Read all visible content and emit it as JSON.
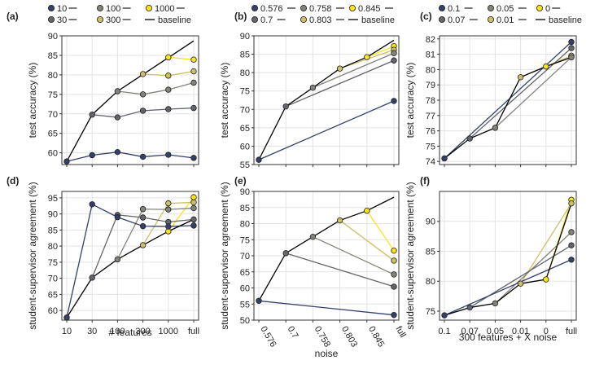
{
  "palette": {
    "navy": "#34406a",
    "gray1": "#63656c",
    "gray2": "#84827a",
    "olive": "#a7a07a",
    "khaki": "#cdbf66",
    "yellow": "#fbe318",
    "baseline": "#000000",
    "grid": "#e3e3e3"
  },
  "chart_data": [
    {
      "panel": "(a)",
      "type": "line",
      "x": [
        "10",
        "30",
        "100",
        "300",
        "1000",
        "full"
      ],
      "xlabel": "",
      "ylabel": "test accuracy (%)",
      "ylim": [
        57,
        90
      ],
      "yticks": [
        60,
        65,
        70,
        75,
        80,
        85,
        90
      ],
      "xtick_labels": false,
      "legend": [
        {
          "label": "10",
          "color": "navy",
          "type": "dot"
        },
        {
          "label": "100",
          "color": "gray2",
          "type": "dot"
        },
        {
          "label": "1000",
          "color": "yellow",
          "type": "dot"
        },
        {
          "label": "30",
          "color": "gray1",
          "type": "dot"
        },
        {
          "label": "300",
          "color": "khaki",
          "type": "dot"
        },
        {
          "label": "baseline",
          "color": "baseline",
          "type": "line"
        }
      ],
      "baseline": {
        "x": [
          0,
          1,
          2,
          3,
          4,
          5
        ],
        "y": [
          57.8,
          69.8,
          75.8,
          80.1,
          84.4,
          88.7
        ]
      },
      "series": [
        {
          "name": "10",
          "color": "navy",
          "x": [
            0,
            1,
            2,
            3,
            4,
            5
          ],
          "y": [
            57.8,
            59.4,
            60.2,
            59.0,
            59.5,
            58.7
          ]
        },
        {
          "name": "30",
          "color": "gray1",
          "x": [
            1,
            2,
            3,
            4,
            5
          ],
          "y": [
            69.8,
            69.1,
            70.8,
            71.2,
            71.5
          ]
        },
        {
          "name": "100",
          "color": "gray2",
          "x": [
            2,
            3,
            4,
            5
          ],
          "y": [
            75.8,
            75.0,
            76.2,
            78.0
          ]
        },
        {
          "name": "300",
          "color": "khaki",
          "x": [
            3,
            4,
            5
          ],
          "y": [
            80.2,
            79.8,
            80.9
          ]
        },
        {
          "name": "1000",
          "color": "yellow",
          "x": [
            4,
            5
          ],
          "y": [
            84.5,
            83.9
          ]
        }
      ]
    },
    {
      "panel": "(b)",
      "type": "line",
      "x": [
        "0.576",
        "0.7",
        "0.758",
        "0.803",
        "0.845",
        "full"
      ],
      "xlabel": "",
      "ylabel": "test accuracy (%)",
      "ylim": [
        55,
        90
      ],
      "yticks": [
        55,
        60,
        65,
        70,
        75,
        80,
        85,
        90
      ],
      "xtick_labels": false,
      "legend": [
        {
          "label": "0.576",
          "color": "navy",
          "type": "dot"
        },
        {
          "label": "0.758",
          "color": "gray2",
          "type": "dot"
        },
        {
          "label": "0.845",
          "color": "yellow",
          "type": "dot"
        },
        {
          "label": "0.7",
          "color": "gray1",
          "type": "dot"
        },
        {
          "label": "0.803",
          "color": "khaki",
          "type": "dot"
        },
        {
          "label": "baseline",
          "color": "baseline",
          "type": "line"
        }
      ],
      "baseline": {
        "x": [
          0,
          1,
          2,
          3,
          4,
          5
        ],
        "y": [
          56.3,
          70.8,
          75.9,
          81.1,
          84.2,
          88.8
        ]
      },
      "series": [
        {
          "name": "0.576",
          "color": "navy",
          "x": [
            0,
            5
          ],
          "y": [
            56.3,
            72.3
          ]
        },
        {
          "name": "0.7",
          "color": "gray1",
          "x": [
            1,
            5
          ],
          "y": [
            70.8,
            83.3
          ]
        },
        {
          "name": "0.758",
          "color": "gray2",
          "x": [
            2,
            5
          ],
          "y": [
            75.9,
            85.3
          ]
        },
        {
          "name": "0.803",
          "color": "khaki",
          "x": [
            3,
            5
          ],
          "y": [
            81.1,
            86.2
          ]
        },
        {
          "name": "0.845",
          "color": "yellow",
          "x": [
            4,
            5
          ],
          "y": [
            84.2,
            87.2
          ]
        }
      ]
    },
    {
      "panel": "(c)",
      "type": "line",
      "x": [
        "0.1",
        "0.07",
        "0.05",
        "0.01",
        "0",
        "full"
      ],
      "xlabel": "",
      "ylabel": "test accuracy (%)",
      "ylim": [
        73.8,
        82.2
      ],
      "yticks": [
        74,
        75,
        76,
        77,
        78,
        79,
        80,
        81,
        82
      ],
      "xtick_labels": false,
      "legend": [
        {
          "label": "0.1",
          "color": "navy",
          "type": "dot"
        },
        {
          "label": "0.05",
          "color": "gray2",
          "type": "dot"
        },
        {
          "label": "0",
          "color": "yellow",
          "type": "dot"
        },
        {
          "label": "0.07",
          "color": "gray1",
          "type": "dot"
        },
        {
          "label": "0.01",
          "color": "khaki",
          "type": "dot"
        },
        {
          "label": "baseline",
          "color": "baseline",
          "type": "line"
        }
      ],
      "baseline": {
        "x": [
          0,
          1,
          2,
          3,
          4,
          5
        ],
        "y": [
          74.2,
          75.5,
          76.2,
          79.5,
          80.2,
          80.8
        ]
      },
      "series": [
        {
          "name": "0.1",
          "color": "navy",
          "x": [
            0,
            5
          ],
          "y": [
            74.2,
            81.8
          ]
        },
        {
          "name": "0.07",
          "color": "gray1",
          "x": [
            1,
            5
          ],
          "y": [
            75.5,
            81.4
          ]
        },
        {
          "name": "0.05",
          "color": "gray2",
          "x": [
            2,
            5
          ],
          "y": [
            76.2,
            80.8
          ]
        },
        {
          "name": "0.01",
          "color": "khaki",
          "x": [
            3,
            5
          ],
          "y": [
            79.5,
            80.9
          ]
        },
        {
          "name": "0",
          "color": "yellow",
          "x": [
            4,
            5
          ],
          "y": [
            80.2,
            80.9
          ]
        }
      ]
    },
    {
      "panel": "(d)",
      "type": "line",
      "x": [
        "10",
        "30",
        "100",
        "300",
        "1000",
        "full"
      ],
      "xlabel": "# features",
      "ylabel": "student-supervisor agreement (%)",
      "ylim": [
        57,
        97
      ],
      "yticks": [
        60,
        65,
        70,
        75,
        80,
        85,
        90,
        95
      ],
      "xtick_labels": true,
      "baseline": {
        "x": [
          0,
          1,
          2,
          3,
          4,
          5
        ],
        "y": [
          57.8,
          70.2,
          75.9,
          80.3,
          84.6,
          88.3
        ]
      },
      "series": [
        {
          "name": "10",
          "color": "navy",
          "x": [
            0,
            1,
            2,
            3,
            4,
            5
          ],
          "y": [
            57.8,
            93.0,
            89.0,
            86.2,
            86.1,
            86.4
          ]
        },
        {
          "name": "30",
          "color": "gray1",
          "x": [
            1,
            2,
            3,
            4,
            5
          ],
          "y": [
            70.2,
            89.7,
            88.9,
            87.5,
            88.3
          ]
        },
        {
          "name": "100",
          "color": "gray2",
          "x": [
            2,
            3,
            4,
            5
          ],
          "y": [
            75.9,
            91.5,
            91.4,
            91.8
          ]
        },
        {
          "name": "300",
          "color": "khaki",
          "x": [
            3,
            4,
            5
          ],
          "y": [
            80.3,
            93.3,
            93.6
          ]
        },
        {
          "name": "1000",
          "color": "yellow",
          "x": [
            4,
            5
          ],
          "y": [
            84.6,
            95.2
          ]
        }
      ]
    },
    {
      "panel": "(e)",
      "type": "line",
      "x": [
        "0.576",
        "0.7",
        "0.758",
        "0.803",
        "0.845",
        "full"
      ],
      "xlabel": "noise",
      "ylabel": "student-supervisor agreement (%)",
      "ylim": [
        50,
        90
      ],
      "yticks": [
        50,
        55,
        60,
        65,
        70,
        75,
        80,
        85,
        90
      ],
      "xtick_labels": true,
      "xtick_rotate": true,
      "baseline": {
        "x": [
          0,
          1,
          2,
          3,
          4,
          5
        ],
        "y": [
          56.0,
          70.8,
          75.9,
          81.0,
          84.0,
          88.2
        ]
      },
      "series": [
        {
          "name": "0.576",
          "color": "navy",
          "x": [
            0,
            5
          ],
          "y": [
            56.0,
            51.6
          ]
        },
        {
          "name": "0.7",
          "color": "gray1",
          "x": [
            1,
            5
          ],
          "y": [
            70.8,
            60.4
          ]
        },
        {
          "name": "0.758",
          "color": "gray2",
          "x": [
            2,
            5
          ],
          "y": [
            75.9,
            64.2
          ]
        },
        {
          "name": "0.803",
          "color": "khaki",
          "x": [
            3,
            5
          ],
          "y": [
            81.0,
            68.5
          ]
        },
        {
          "name": "0.845",
          "color": "yellow",
          "x": [
            4,
            5
          ],
          "y": [
            84.0,
            71.6
          ]
        }
      ]
    },
    {
      "panel": "(f)",
      "type": "line",
      "x": [
        "0.1",
        "0.07",
        "0.05",
        "0.01",
        "0",
        "full"
      ],
      "xlabel": "300 features + X noise",
      "ylabel": "student-supervisor agreement (%)",
      "ylim": [
        73.5,
        95
      ],
      "yticks": [
        75,
        80,
        85,
        90
      ],
      "xtick_labels": true,
      "baseline": {
        "x": [
          0,
          1,
          2,
          3,
          4,
          5
        ],
        "y": [
          74.3,
          75.6,
          76.3,
          79.6,
          80.3,
          93.0
        ]
      },
      "series": [
        {
          "name": "0.1",
          "color": "navy",
          "x": [
            0,
            5
          ],
          "y": [
            74.3,
            83.6
          ]
        },
        {
          "name": "0.07",
          "color": "gray1",
          "x": [
            1,
            5
          ],
          "y": [
            75.6,
            86.0
          ]
        },
        {
          "name": "0.05",
          "color": "gray2",
          "x": [
            2,
            5
          ],
          "y": [
            76.3,
            88.2
          ]
        },
        {
          "name": "0.01",
          "color": "khaki",
          "x": [
            3,
            5
          ],
          "y": [
            79.6,
            93.0
          ]
        },
        {
          "name": "0",
          "color": "yellow",
          "x": [
            4,
            5
          ],
          "y": [
            80.3,
            93.6
          ]
        }
      ]
    }
  ]
}
